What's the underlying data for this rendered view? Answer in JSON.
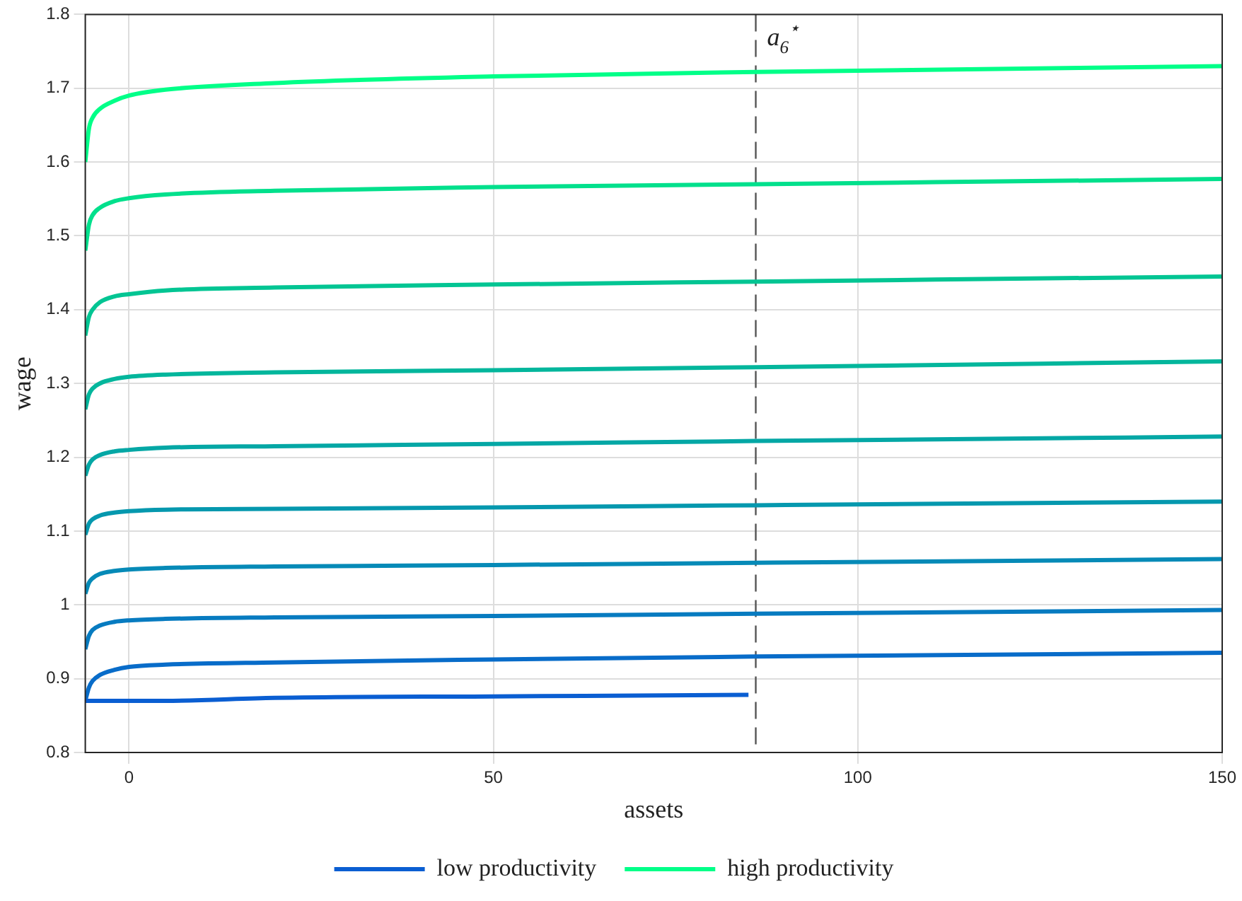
{
  "chart_data": {
    "type": "line",
    "xlabel": "assets",
    "ylabel": "wage",
    "x": [
      -6,
      -5.5,
      -5,
      -4,
      -2,
      0,
      5,
      20,
      50,
      86,
      150
    ],
    "series": [
      {
        "name": "low productivity",
        "color": "#0a5ed2",
        "x": [
          -6,
          5,
          20,
          50,
          85
        ],
        "values": [
          0.87,
          0.87,
          0.874,
          0.876,
          0.878
        ]
      },
      {
        "color": "#086cc9",
        "values": [
          0.87,
          0.888,
          0.897,
          0.905,
          0.912,
          0.916,
          0.919,
          0.922,
          0.926,
          0.93,
          0.935
        ]
      },
      {
        "color": "#077bc0",
        "values": [
          0.94,
          0.958,
          0.966,
          0.972,
          0.977,
          0.979,
          0.981,
          0.983,
          0.985,
          0.988,
          0.993
        ]
      },
      {
        "color": "#068ab7",
        "values": [
          1.015,
          1.03,
          1.036,
          1.042,
          1.046,
          1.048,
          1.05,
          1.052,
          1.054,
          1.057,
          1.062
        ]
      },
      {
        "color": "#0598ae",
        "values": [
          1.095,
          1.11,
          1.116,
          1.121,
          1.125,
          1.127,
          1.129,
          1.13,
          1.132,
          1.135,
          1.14
        ]
      },
      {
        "color": "#04a7a5",
        "values": [
          1.175,
          1.19,
          1.197,
          1.203,
          1.208,
          1.21,
          1.213,
          1.215,
          1.218,
          1.222,
          1.228
        ]
      },
      {
        "color": "#03b69c",
        "values": [
          1.265,
          1.285,
          1.293,
          1.3,
          1.306,
          1.309,
          1.312,
          1.315,
          1.318,
          1.322,
          1.33
        ]
      },
      {
        "color": "#02c593",
        "values": [
          1.365,
          1.39,
          1.4,
          1.41,
          1.418,
          1.421,
          1.426,
          1.43,
          1.434,
          1.438,
          1.445
        ]
      },
      {
        "color": "#01e08c",
        "values": [
          1.48,
          1.515,
          1.528,
          1.538,
          1.547,
          1.551,
          1.556,
          1.561,
          1.566,
          1.57,
          1.577
        ]
      },
      {
        "name": "high productivity",
        "color": "#00ff88",
        "values": [
          1.6,
          1.645,
          1.66,
          1.672,
          1.683,
          1.69,
          1.698,
          1.707,
          1.716,
          1.722,
          1.73
        ]
      }
    ],
    "xlim": [
      -6,
      150
    ],
    "xticks": [
      0,
      50,
      100,
      150
    ],
    "ylim": [
      0.8,
      1.8
    ],
    "yticks": [
      0.8,
      0.9,
      1,
      1.1,
      1.2,
      1.3,
      1.4,
      1.5,
      1.6,
      1.7,
      1.8
    ],
    "ref_lines": [
      {
        "axis": "x",
        "value": 86,
        "label": "a$_{6}$$^{⋆}$",
        "color": "#555555",
        "line_style": "dashed"
      }
    ],
    "grid": true,
    "legend": "bottom",
    "marker": "none",
    "line_style": "solid"
  }
}
